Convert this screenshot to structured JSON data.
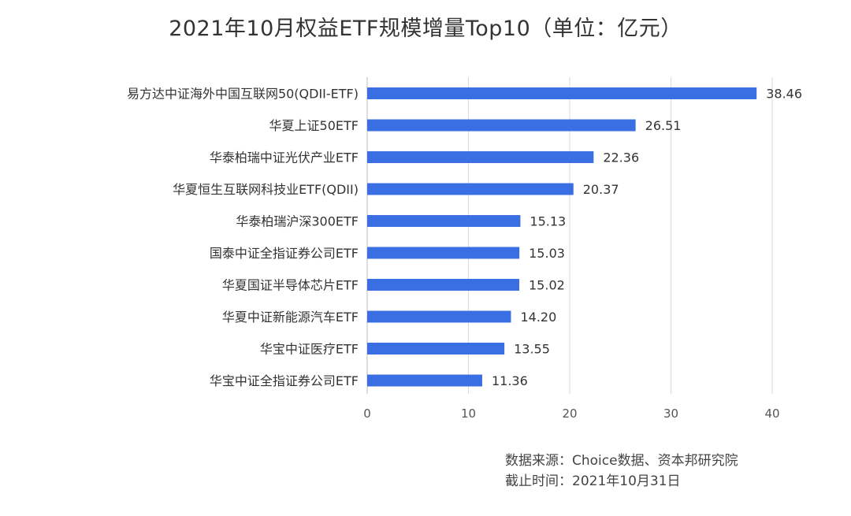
{
  "chart_data": {
    "type": "bar",
    "orientation": "horizontal",
    "title": "2021年10月权益ETF规模增量Top10（单位：亿元）",
    "categories": [
      "易方达中证海外中国互联网50(QDII-ETF)",
      "华夏上证50ETF",
      "华泰柏瑞中证光伏产业ETF",
      "华夏恒生互联网科技业ETF(QDII)",
      "华泰柏瑞沪深300ETF",
      "国泰中证全指证券公司ETF",
      "华夏国证半导体芯片ETF",
      "华夏中证新能源汽车ETF",
      "华宝中证医疗ETF",
      "华宝中证全指证券公司ETF"
    ],
    "values": [
      38.46,
      26.51,
      22.36,
      20.37,
      15.13,
      15.03,
      15.02,
      14.2,
      13.55,
      11.36
    ],
    "value_labels": [
      "38.46",
      "26.51",
      "22.36",
      "20.37",
      "15.13",
      "15.03",
      "15.02",
      "14.20",
      "13.55",
      "11.36"
    ],
    "xlim": [
      0,
      40
    ],
    "x_ticks": [
      0,
      10,
      20,
      30,
      40
    ],
    "grid": true,
    "bar_color": "#3A6FE3"
  },
  "source": {
    "line1": "数据来源：Choice数据、资本邦研究院",
    "line2": "截止时间：2021年10月31日"
  }
}
